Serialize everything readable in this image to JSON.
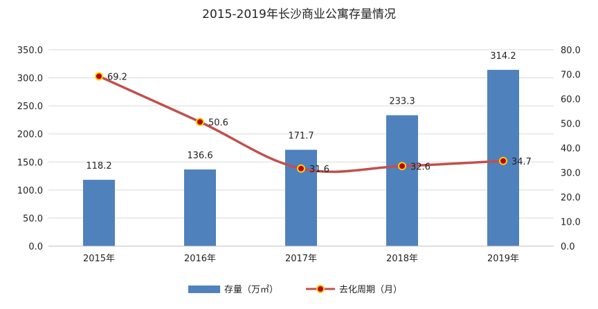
{
  "chart_data": {
    "type": "bar",
    "title": "2015-2019年长沙商业公寓存量情况",
    "categories": [
      "2015年",
      "2016年",
      "2017年",
      "2018年",
      "2019年"
    ],
    "series": [
      {
        "name": "存量（万㎡）",
        "type": "bar",
        "axis": "left",
        "values": [
          118.2,
          136.6,
          171.7,
          233.3,
          314.2
        ],
        "labels": [
          "118.2",
          "136.6",
          "171.7",
          "233.3",
          "314.2"
        ],
        "color": "#4f81bd"
      },
      {
        "name": "去化周期（月）",
        "type": "line",
        "axis": "right",
        "values": [
          69.2,
          50.6,
          31.6,
          32.6,
          34.7
        ],
        "labels": [
          "69.2",
          "50.6",
          "31.6",
          "32.6",
          "34.7"
        ],
        "color": "#c0504d",
        "marker_color": "#c00000",
        "marker_edge": "#f6d100"
      }
    ],
    "y_left": {
      "range": [
        0,
        350
      ],
      "ticks": [
        "0.0",
        "50.0",
        "100.0",
        "150.0",
        "200.0",
        "250.0",
        "300.0",
        "350.0"
      ]
    },
    "y_right": {
      "range": [
        0,
        80
      ],
      "ticks": [
        "0.0",
        "10.0",
        "20.0",
        "30.0",
        "40.0",
        "50.0",
        "60.0",
        "70.0",
        "80.0"
      ]
    },
    "grid": true,
    "legend_position": "bottom"
  }
}
